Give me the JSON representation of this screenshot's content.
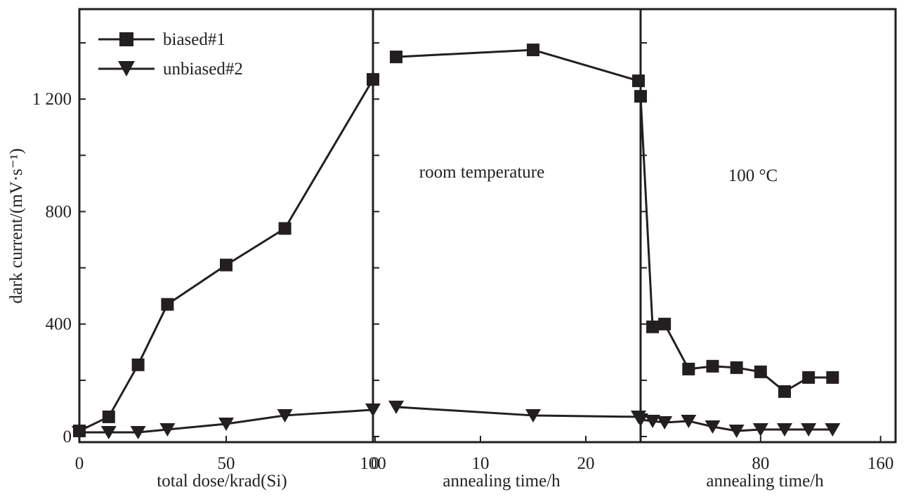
{
  "chart_data": [
    {
      "type": "line",
      "panel": "irradiation",
      "xlabel": "total dose/krad(Si)",
      "ylabel": "dark current/(mV·s⁻¹)",
      "xlim": [
        0,
        100
      ],
      "ylim": [
        -20,
        1520
      ],
      "xticks": [
        0,
        50,
        100
      ],
      "xtick_labels": [
        "0",
        "50",
        "100"
      ],
      "yticks": [
        0,
        400,
        800,
        1200
      ],
      "ytick_labels": [
        "0",
        "400",
        "800",
        "1 200"
      ],
      "series": [
        {
          "name": "biased#1",
          "marker": "square",
          "x": [
            0,
            10,
            20,
            30,
            50,
            70,
            100
          ],
          "y": [
            20,
            70,
            255,
            470,
            610,
            740,
            1270
          ]
        },
        {
          "name": "unbiased#2",
          "marker": "triangle-down",
          "x": [
            0,
            10,
            20,
            30,
            50,
            70,
            100
          ],
          "y": [
            15,
            15,
            15,
            25,
            45,
            75,
            95
          ]
        }
      ],
      "legend": {
        "position": "top-left",
        "entries": [
          "biased#1",
          "unbiased#2"
        ]
      }
    },
    {
      "type": "line",
      "panel": "room-temperature-annealing",
      "xlabel": "annealing time/h",
      "annotation": "room temperature",
      "xlim": [
        -0.2,
        25.2
      ],
      "ylim": [
        -20,
        1520
      ],
      "xticks": [
        0,
        10,
        20
      ],
      "xtick_labels": [
        "0",
        "10",
        "20"
      ],
      "series": [
        {
          "name": "biased#1",
          "marker": "square",
          "x": [
            2,
            15,
            25
          ],
          "y": [
            1350,
            1375,
            1265
          ]
        },
        {
          "name": "unbiased#2",
          "marker": "triangle-down",
          "x": [
            2,
            15,
            25
          ],
          "y": [
            105,
            75,
            70
          ]
        }
      ]
    },
    {
      "type": "line",
      "panel": "100C-annealing",
      "xlabel": "annealing time/h",
      "annotation": "100 °C",
      "xlim": [
        0,
        170
      ],
      "ylim": [
        -20,
        1520
      ],
      "xticks": [
        80,
        160
      ],
      "xtick_labels": [
        "80",
        "160"
      ],
      "series": [
        {
          "name": "biased#1",
          "marker": "square",
          "x": [
            0,
            8,
            16,
            32,
            48,
            64,
            80,
            96,
            112,
            128
          ],
          "y": [
            1210,
            390,
            400,
            240,
            250,
            245,
            230,
            160,
            210,
            210
          ]
        },
        {
          "name": "unbiased#2",
          "marker": "triangle-down",
          "x": [
            0,
            8,
            16,
            32,
            48,
            64,
            80,
            96,
            112,
            128
          ],
          "y": [
            60,
            55,
            50,
            55,
            35,
            20,
            25,
            25,
            25,
            25
          ]
        }
      ]
    }
  ]
}
